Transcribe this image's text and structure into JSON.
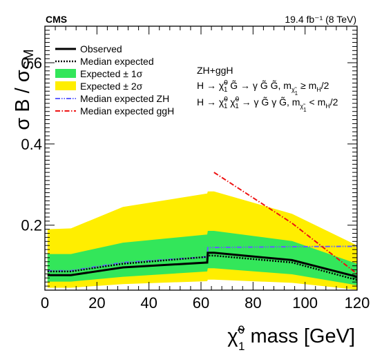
{
  "chart_data": {
    "type": "line",
    "experiment": "CMS",
    "lumi": "19.4 fb⁻¹ (8 TeV)",
    "ylabel": "σ B / σ_SM",
    "xlabel": "χ̃₁⁰ mass [GeV]",
    "xlim": [
      0,
      120
    ],
    "ylim": [
      0.04,
      0.69
    ],
    "xticks": [
      0,
      20,
      40,
      60,
      80,
      100,
      120
    ],
    "yticks": [
      0.2,
      0.4,
      0.6
    ],
    "grid": false,
    "legend_position": "top-left",
    "annotations": [
      "ZH+ggH",
      "H → χ̃₁⁰ G̃ → γ G̃ G̃, mχ̃₁⁰ ≥ mH/2",
      "H → χ̃₁⁰ χ̃₁⁰ → γ G̃ γ G̃, mχ̃₁⁰ < mH/2"
    ],
    "series": [
      {
        "name": "Observed",
        "color": "#000000",
        "style": "solid",
        "x": [
          1,
          10,
          30,
          62.4,
          62.6,
          65,
          95,
          120
        ],
        "y": [
          0.077,
          0.077,
          0.096,
          0.108,
          0.132,
          0.132,
          0.114,
          0.073
        ]
      },
      {
        "name": "Median expected",
        "color": "#000000",
        "style": "dotted",
        "x": [
          1,
          10,
          30,
          62.4,
          62.6,
          65,
          95,
          120
        ],
        "y": [
          0.086,
          0.086,
          0.105,
          0.122,
          0.125,
          0.125,
          0.108,
          0.065
        ]
      },
      {
        "name": "Expected ± 1σ",
        "color": "#33e65a",
        "style": "band",
        "x": [
          1,
          10,
          30,
          62.4,
          62.6,
          65,
          95,
          120
        ],
        "lower": [
          0.061,
          0.061,
          0.073,
          0.086,
          0.094,
          0.094,
          0.079,
          0.052
        ],
        "upper": [
          0.129,
          0.129,
          0.157,
          0.177,
          0.186,
          0.186,
          0.161,
          0.105
        ]
      },
      {
        "name": "Expected ± 2σ",
        "color": "#ffee00",
        "style": "band",
        "x": [
          1,
          10,
          30,
          62.4,
          62.6,
          65,
          95,
          120
        ],
        "lower": [
          0.046,
          0.046,
          0.055,
          0.062,
          0.066,
          0.066,
          0.058,
          0.041
        ],
        "upper": [
          0.19,
          0.192,
          0.245,
          0.278,
          0.283,
          0.283,
          0.228,
          0.15
        ]
      },
      {
        "name": "Median expected ZH",
        "color": "#6060ff",
        "style": "dashdotdot",
        "x": [
          1,
          10,
          30,
          62.4,
          62.6,
          65,
          95,
          120
        ],
        "y": [
          0.088,
          0.088,
          0.108,
          0.122,
          0.145,
          0.145,
          0.147,
          0.148
        ]
      },
      {
        "name": "Median expected ggH",
        "color": "#ee1111",
        "style": "dashdot",
        "x": [
          65,
          95,
          120
        ],
        "y": [
          0.33,
          0.205,
          0.08
        ]
      }
    ]
  }
}
